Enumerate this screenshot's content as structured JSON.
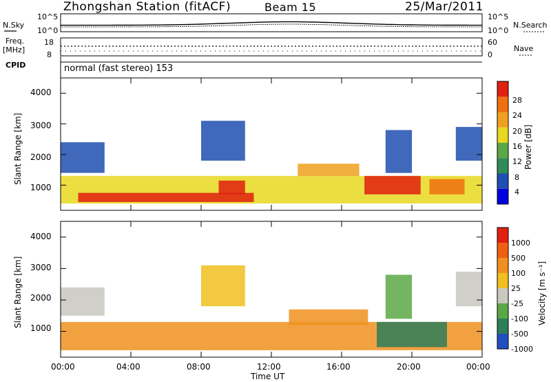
{
  "header": {
    "station_title": "Zhongshan Station (fitACF)",
    "beam": "Beam 15",
    "date": "25/Mar/2011"
  },
  "summary_panels": {
    "nsky_label": "N.Sky",
    "nsky_ticks": [
      "10^5",
      "10^0"
    ],
    "nsearch_label": "N.Search",
    "nsearch_ticks": [
      "10^5",
      "10^0"
    ],
    "freq_label": "Freq.",
    "freq_unit": "[MHz]",
    "freq_ticks": [
      "18",
      "8"
    ],
    "nave_label": "Nave",
    "nave_ticks": [
      "60",
      "0"
    ],
    "cpid_label": "CPID",
    "cpid_text": "normal (fast stereo) 153"
  },
  "chart_data": [
    {
      "type": "heatmap",
      "name": "power",
      "ylabel": "Slant Range [km]",
      "yticks": [
        "4000",
        "3000",
        "2000",
        "1000"
      ],
      "ylim": [
        180,
        4500
      ],
      "xlim": [
        0,
        24
      ],
      "colorbar_label": "Power [dB]",
      "colorbar_ticks": [
        "28",
        "24",
        "20",
        "16",
        "12",
        "8",
        "4"
      ],
      "colors": [
        "#0000e0",
        "#1f4fb0",
        "#2e8b57",
        "#5aa845",
        "#e8d820",
        "#f0a020",
        "#f07010",
        "#e02010"
      ],
      "regions": [
        {
          "t0": 0.0,
          "t1": 24.0,
          "r0": 400,
          "r1": 1300,
          "level": 4
        },
        {
          "t0": 1.0,
          "t1": 11.0,
          "r0": 450,
          "r1": 750,
          "level": 7
        },
        {
          "t0": 9.0,
          "t1": 10.5,
          "r0": 700,
          "r1": 1150,
          "level": 7
        },
        {
          "t0": 17.3,
          "t1": 20.5,
          "r0": 700,
          "r1": 1300,
          "level": 7
        },
        {
          "t0": 21.0,
          "t1": 23.0,
          "r0": 700,
          "r1": 1200,
          "level": 6
        },
        {
          "t0": 0.0,
          "t1": 2.5,
          "r0": 1400,
          "r1": 2400,
          "level": 1
        },
        {
          "t0": 8.0,
          "t1": 10.5,
          "r0": 1800,
          "r1": 3100,
          "level": 1
        },
        {
          "t0": 13.5,
          "t1": 17.0,
          "r0": 1300,
          "r1": 1700,
          "level": 5
        },
        {
          "t0": 18.5,
          "t1": 20.0,
          "r0": 1400,
          "r1": 2800,
          "level": 1
        },
        {
          "t0": 22.5,
          "t1": 24.0,
          "r0": 1800,
          "r1": 2900,
          "level": 1
        }
      ]
    },
    {
      "type": "heatmap",
      "name": "velocity",
      "ylabel": "Slant Range [km]",
      "yticks": [
        "4000",
        "3000",
        "2000",
        "1000"
      ],
      "ylim": [
        180,
        4500
      ],
      "xlim": [
        0,
        24
      ],
      "colorbar_label": "Velocity [m s⁻¹]",
      "colorbar_ticks": [
        "1000",
        "500",
        "100",
        "25",
        "-25",
        "-100",
        "-500",
        "-1000"
      ],
      "colors": [
        "#2050c0",
        "#2e7d5a",
        "#5aa845",
        "#c8c8c0",
        "#f0c020",
        "#f09020",
        "#f06010",
        "#e02010"
      ],
      "regions": [
        {
          "t0": 0.0,
          "t1": 24.0,
          "r0": 400,
          "r1": 1300,
          "level": 5
        },
        {
          "t0": 18.0,
          "t1": 22.0,
          "r0": 500,
          "r1": 1300,
          "level": 1
        },
        {
          "t0": 0.0,
          "t1": 2.5,
          "r0": 1500,
          "r1": 2400,
          "level": 3
        },
        {
          "t0": 8.0,
          "t1": 10.5,
          "r0": 1800,
          "r1": 3100,
          "level": 4
        },
        {
          "t0": 13.0,
          "t1": 17.5,
          "r0": 1200,
          "r1": 1700,
          "level": 5
        },
        {
          "t0": 18.5,
          "t1": 20.0,
          "r0": 1400,
          "r1": 2800,
          "level": 2
        },
        {
          "t0": 22.5,
          "t1": 24.0,
          "r0": 1800,
          "r1": 2900,
          "level": 3
        }
      ]
    }
  ],
  "xaxis": {
    "ticks": [
      "00:00",
      "04:00",
      "08:00",
      "12:00",
      "16:00",
      "20:00",
      "00:00"
    ],
    "label": "Time UT"
  }
}
